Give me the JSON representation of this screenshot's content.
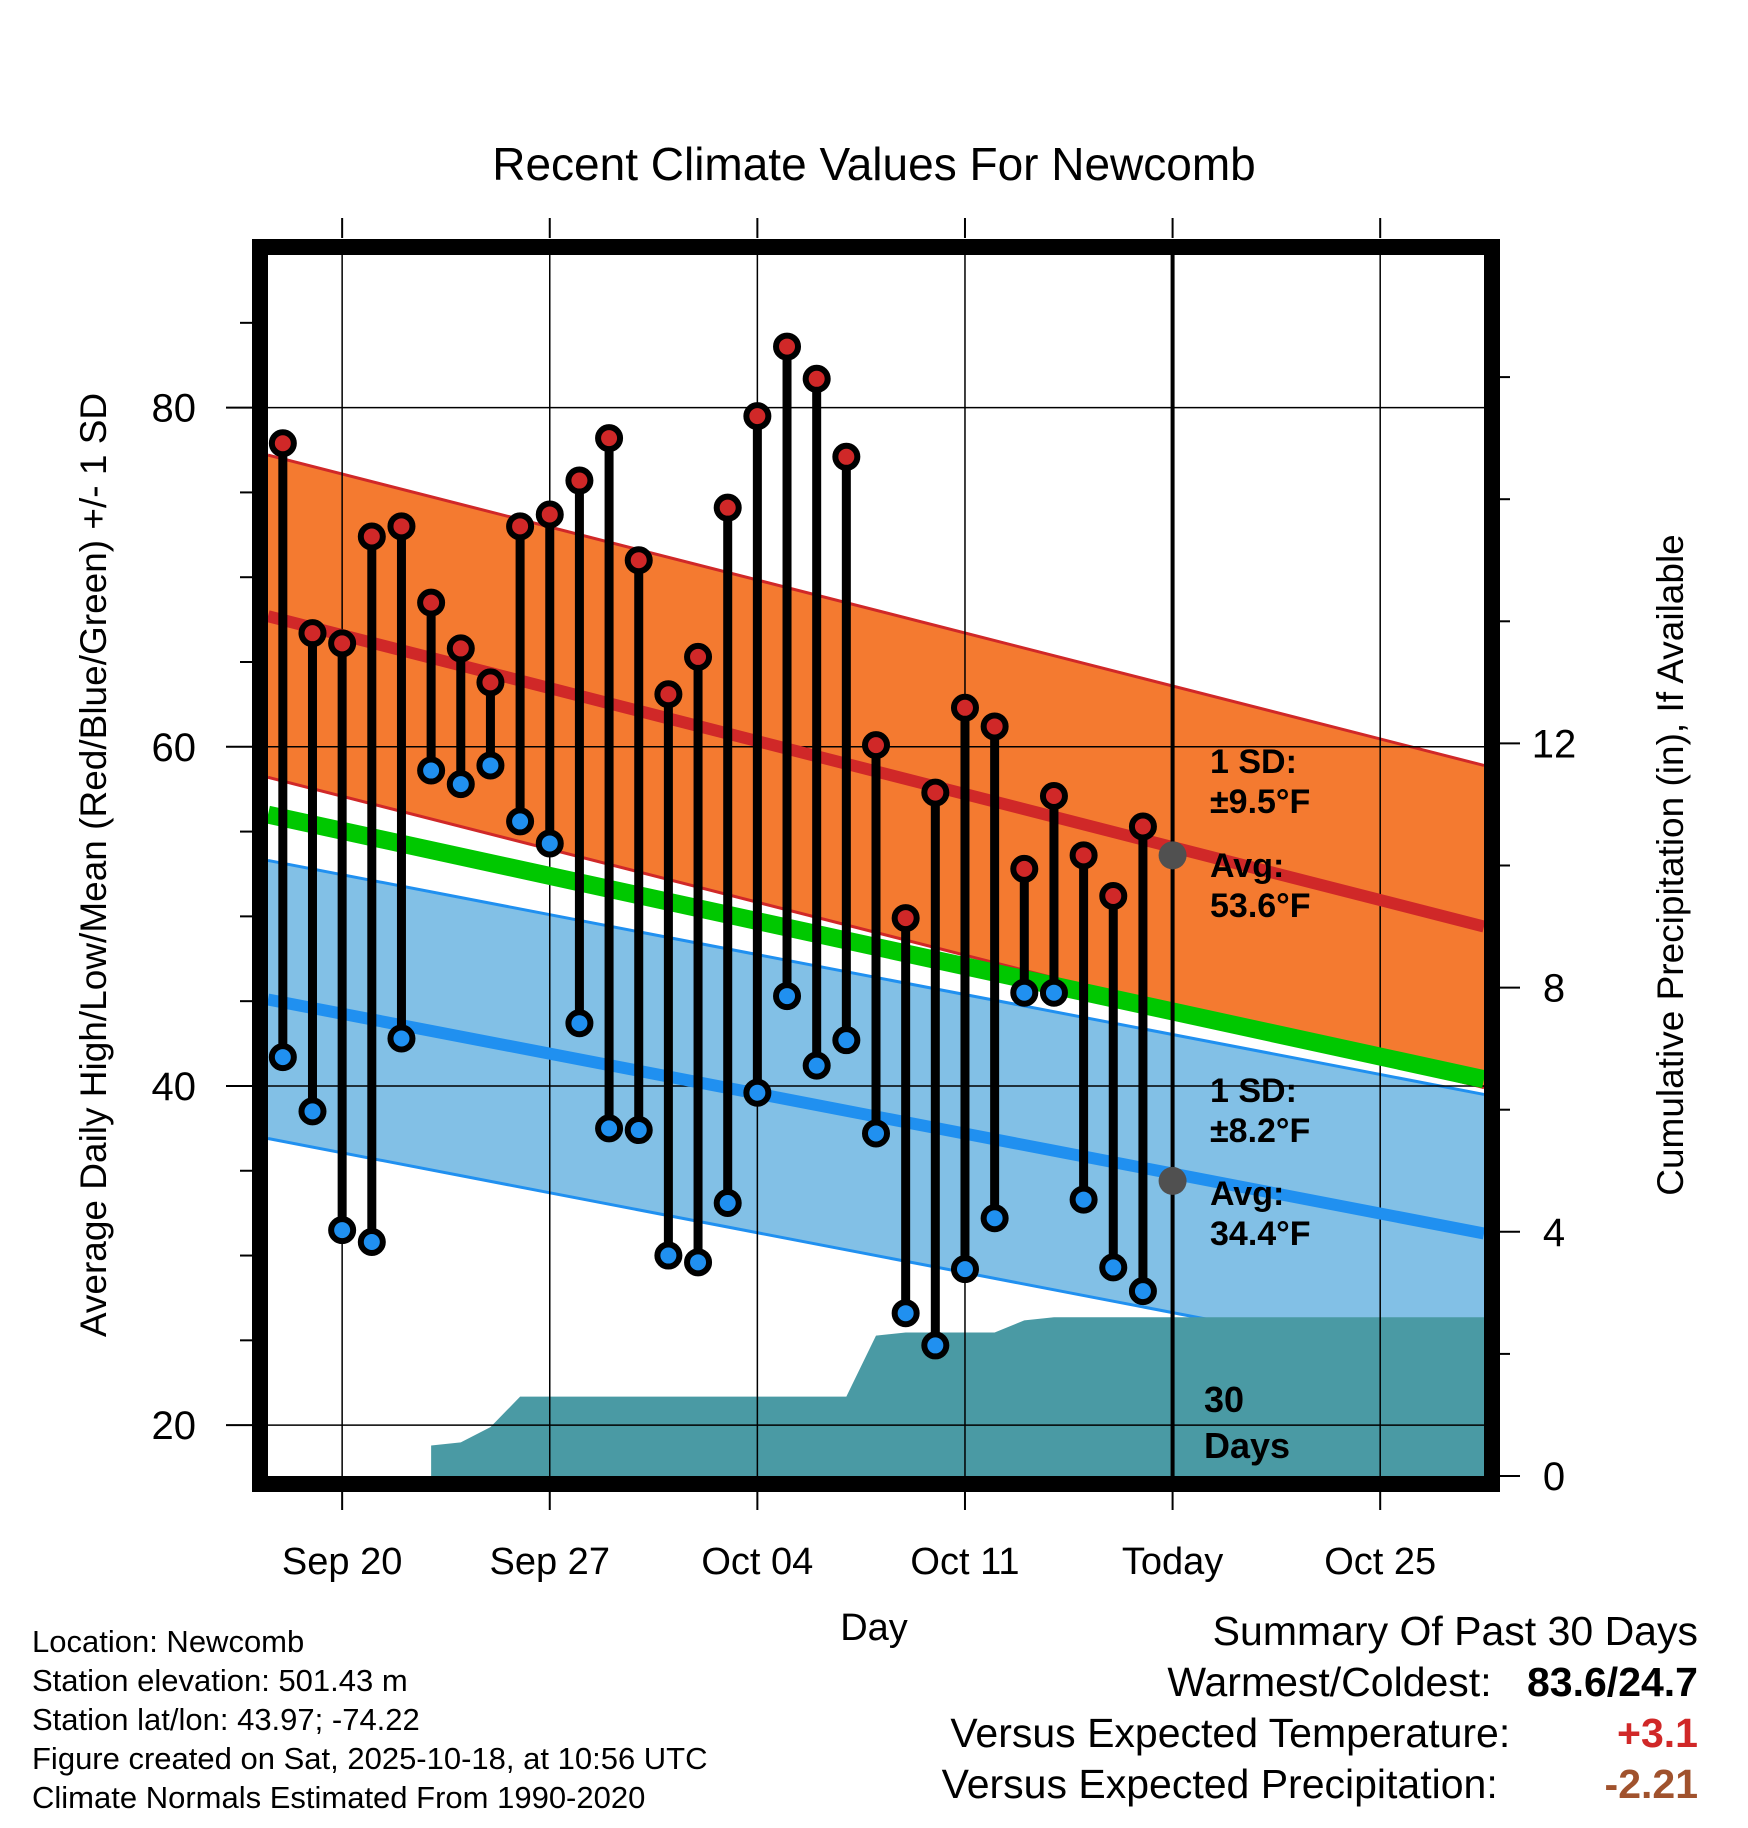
{
  "chart_data": {
    "type": "line",
    "title": "Recent Climate Values For Newcomb",
    "xlabel": "Day",
    "ylabel": "Average Daily High/Low/Mean (Red/Blue/Green) +/- 1 SD",
    "y2label": "Cumulative Precipitation (in), If Available",
    "ylim": [
      17,
      89
    ],
    "y2lim": [
      0,
      20
    ],
    "xlim": [
      -0.5,
      40.5
    ],
    "x_ticks": [
      {
        "day": 2,
        "label": "Sep 20"
      },
      {
        "day": 9,
        "label": "Sep 27"
      },
      {
        "day": 16,
        "label": "Oct 04"
      },
      {
        "day": 23,
        "label": "Oct 11"
      },
      {
        "day": 30,
        "label": "Today"
      },
      {
        "day": 37,
        "label": "Oct 25"
      }
    ],
    "y_ticks": [
      20,
      40,
      60,
      80
    ],
    "y2_ticks": [
      0,
      4,
      8,
      12
    ],
    "today_day": 30,
    "days": [
      0,
      1,
      2,
      3,
      4,
      5,
      6,
      7,
      8,
      9,
      10,
      11,
      12,
      13,
      14,
      15,
      16,
      17,
      18,
      19,
      20,
      21,
      22,
      23,
      24,
      25,
      26,
      27,
      28,
      29
    ],
    "series": [
      {
        "name": "Daily High",
        "color": "#d02828",
        "values": [
          77.9,
          66.7,
          66.1,
          72.4,
          73.0,
          68.5,
          65.8,
          63.8,
          73.0,
          73.7,
          75.7,
          78.2,
          71.0,
          63.1,
          65.3,
          74.1,
          79.5,
          83.6,
          81.7,
          77.1,
          60.1,
          49.9,
          57.3,
          62.3,
          61.2,
          52.8,
          57.1,
          53.6,
          51.2,
          55.3
        ]
      },
      {
        "name": "Daily Low",
        "color": "#2090f0",
        "values": [
          41.7,
          38.5,
          31.5,
          30.8,
          42.8,
          58.6,
          57.8,
          58.9,
          55.6,
          54.3,
          43.7,
          37.5,
          37.4,
          30.0,
          29.6,
          33.1,
          39.6,
          45.3,
          41.2,
          42.7,
          37.2,
          26.6,
          24.7,
          29.2,
          32.2,
          45.5,
          45.5,
          33.3,
          29.3,
          27.9
        ]
      }
    ],
    "normals": {
      "high_mean": [
        67.7,
        49.4
      ],
      "high_sd": 9.5,
      "low_mean": [
        45.1,
        31.3
      ],
      "low_sd": 8.2,
      "daily_mean": [
        56.0,
        40.4
      ]
    },
    "precip_cumulative": {
      "days": [
        5,
        6,
        7,
        8,
        19,
        20,
        21,
        22,
        23,
        24,
        25,
        26,
        40.5
      ],
      "values": [
        0.5,
        0.55,
        0.8,
        1.3,
        1.3,
        2.3,
        2.35,
        2.35,
        2.35,
        2.35,
        2.55,
        2.6,
        2.6
      ]
    },
    "annotations": {
      "high_sd_label": "1 SD:",
      "high_sd_value": "±9.5°F",
      "high_avg_label": "Avg:",
      "high_avg_value": "53.6°F",
      "high_avg_point": 53.6,
      "low_sd_label": "1 SD:",
      "low_sd_value": "±8.2°F",
      "low_avg_label": "Avg:",
      "low_avg_value": "34.4°F",
      "low_avg_point": 34.4,
      "days_label_1": "30",
      "days_label_2": "Days"
    },
    "colors": {
      "high_band": "#f47a30",
      "high_line": "#d02828",
      "low_band": "#82c0e6",
      "low_line": "#2090f0",
      "mean_line": "#00c800",
      "precip": "#4a9aa4",
      "annotation": "#505050"
    }
  },
  "info": {
    "location": "Location: Newcomb",
    "elevation": "Station elevation: 501.43 m",
    "latlon": "Station lat/lon: 43.97; -74.22",
    "created": "Figure created on Sat, 2025-10-18, at 10:56 UTC",
    "normals": "Climate Normals Estimated From 1990-2020"
  },
  "summary": {
    "title": "Summary Of Past 30 Days",
    "warmest_label": "Warmest/Coldest:",
    "warmest_value": "83.6/24.7",
    "temp_label": "Versus Expected Temperature:",
    "temp_value": "+3.1",
    "temp_color": "#d02828",
    "precip_label": "Versus Expected Precipitation:",
    "precip_value": "-2.21",
    "precip_color": "#a0522d"
  }
}
